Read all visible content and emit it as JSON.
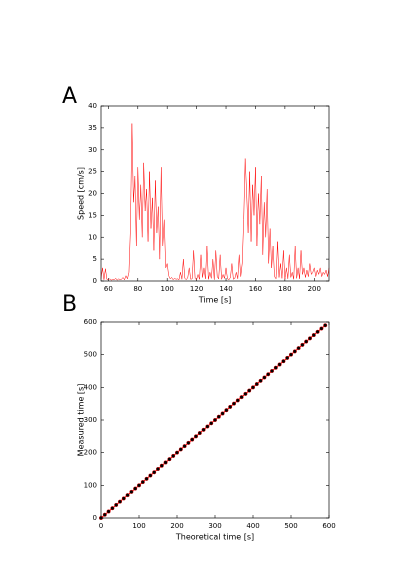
{
  "chart_data": [
    {
      "type": "line",
      "panel_label": "A",
      "x_label": "Time [s]",
      "y_label": "Speed [cm/s]",
      "color": "#ff0000",
      "x": [
        55,
        56,
        57,
        58,
        59,
        60,
        61,
        62,
        63,
        64,
        65,
        66,
        67,
        68,
        69,
        70,
        71,
        72,
        73,
        74,
        75,
        76,
        77,
        78,
        79,
        80,
        81,
        82,
        83,
        84,
        85,
        86,
        87,
        88,
        89,
        90,
        91,
        92,
        93,
        94,
        95,
        96,
        97,
        98,
        99,
        100,
        101,
        102,
        103,
        104,
        105,
        106,
        107,
        108,
        109,
        110,
        111,
        112,
        113,
        114,
        115,
        116,
        117,
        118,
        119,
        120,
        121,
        122,
        123,
        124,
        125,
        126,
        127,
        128,
        129,
        130,
        131,
        132,
        133,
        134,
        135,
        136,
        137,
        138,
        139,
        140,
        141,
        142,
        143,
        144,
        145,
        146,
        147,
        148,
        149,
        150,
        151,
        152,
        153,
        154,
        155,
        156,
        157,
        158,
        159,
        160,
        161,
        162,
        163,
        164,
        165,
        166,
        167,
        168,
        169,
        170,
        171,
        172,
        173,
        174,
        175,
        176,
        177,
        178,
        179,
        180,
        181,
        182,
        183,
        184,
        185,
        186,
        187,
        188,
        189,
        190,
        191,
        192,
        193,
        194,
        195,
        196,
        197,
        198,
        199,
        200,
        201,
        202,
        203,
        204,
        205,
        206,
        207,
        208,
        209,
        210
      ],
      "values": [
        0.5,
        3,
        0.3,
        2.8,
        0.4,
        0.3,
        0.5,
        0.2,
        0.4,
        0.3,
        0.6,
        0.2,
        0.5,
        0.3,
        0.4,
        0.8,
        0.3,
        1.2,
        0.5,
        2,
        12,
        36,
        18,
        24,
        8,
        26,
        14,
        22,
        10,
        27,
        16,
        21,
        9,
        25,
        12,
        19,
        7,
        23,
        11,
        17,
        5,
        26,
        8,
        14,
        3,
        4,
        1.2,
        0.5,
        0.8,
        0.3,
        0.6,
        0.4,
        0.5,
        0.3,
        2,
        0.4,
        5,
        0.6,
        0.3,
        0.8,
        3,
        0.4,
        0.5,
        7,
        0.6,
        0.3,
        1.5,
        0.4,
        6,
        0.8,
        3,
        0.5,
        8,
        0.4,
        2,
        0.6,
        5,
        0.3,
        7,
        1,
        0.5,
        6,
        0.4,
        1.5,
        0.6,
        3,
        0.5,
        0.3,
        0.8,
        4,
        0.4,
        0.6,
        2,
        0.5,
        6,
        1,
        4,
        14,
        28,
        20,
        11,
        25,
        9,
        22,
        15,
        26,
        8,
        20,
        13,
        24,
        6,
        18,
        10,
        21,
        4,
        12,
        3,
        8,
        1,
        0.5,
        9,
        0.8,
        4,
        0.6,
        7,
        0.4,
        3,
        0.5,
        6,
        0.8,
        2,
        0.4,
        8,
        0.6,
        3,
        0.5,
        7,
        1.5,
        3,
        0.8,
        2.5,
        1,
        4,
        1.5,
        2,
        3,
        1,
        2.5,
        1.5,
        3,
        1,
        2,
        1.5,
        2.5,
        1,
        3
      ],
      "xlim": [
        55,
        210
      ],
      "xticks": [
        60,
        80,
        100,
        120,
        140,
        160,
        180,
        200
      ],
      "ylim": [
        0,
        40
      ],
      "yticks": [
        0,
        5,
        10,
        15,
        20,
        25,
        30,
        35,
        40
      ]
    },
    {
      "type": "line",
      "panel_label": "B",
      "x_label": "Theoretical time [s]",
      "y_label": "Measured time [s]",
      "color": "#ff0000",
      "marker_color": "#000000",
      "x": [
        0,
        10,
        20,
        30,
        40,
        50,
        60,
        70,
        80,
        90,
        100,
        110,
        120,
        130,
        140,
        150,
        160,
        170,
        180,
        190,
        200,
        210,
        220,
        230,
        240,
        250,
        260,
        270,
        280,
        290,
        300,
        310,
        320,
        330,
        340,
        350,
        360,
        370,
        380,
        390,
        400,
        410,
        420,
        430,
        440,
        450,
        460,
        470,
        480,
        490,
        500,
        510,
        520,
        530,
        540,
        550,
        560,
        570,
        580,
        590
      ],
      "values": [
        0,
        10,
        20,
        30,
        40,
        50,
        60,
        70,
        80,
        90,
        100,
        110,
        120,
        130,
        140,
        150,
        160,
        170,
        180,
        190,
        200,
        210,
        220,
        230,
        240,
        250,
        260,
        270,
        280,
        290,
        300,
        310,
        320,
        330,
        340,
        350,
        360,
        370,
        380,
        390,
        400,
        410,
        420,
        430,
        440,
        450,
        460,
        470,
        480,
        490,
        500,
        510,
        520,
        530,
        540,
        550,
        560,
        570,
        580,
        590
      ],
      "xlim": [
        0,
        600
      ],
      "xticks": [
        0,
        100,
        200,
        300,
        400,
        500,
        600
      ],
      "ylim": [
        0,
        600
      ],
      "yticks": [
        0,
        100,
        200,
        300,
        400,
        500,
        600
      ]
    }
  ]
}
